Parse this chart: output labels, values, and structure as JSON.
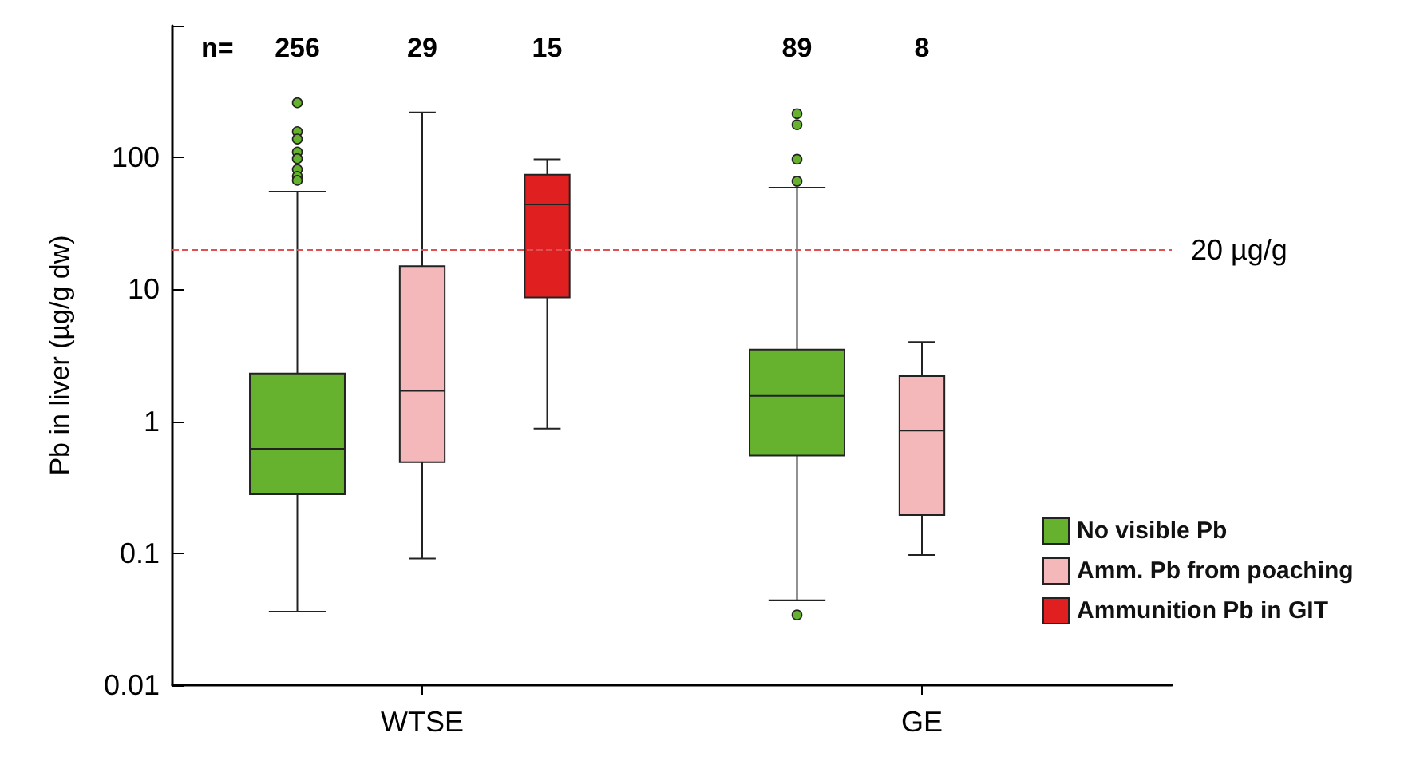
{
  "chart_data": {
    "type": "box",
    "ylabel": "Pb in liver (µg/g dw)",
    "categories": [
      "WTSE",
      "GE"
    ],
    "series": [
      {
        "name": "No visible Pb",
        "color": "#66b22e",
        "boxes": [
          {
            "low": 0.036,
            "q1": 0.28,
            "median": 0.62,
            "q3": 2.3,
            "high": 55,
            "outliers": [
              260,
              157,
              138,
              110,
              98,
              81,
              72,
              67
            ]
          },
          {
            "low": 0.044,
            "q1": 0.55,
            "median": 1.56,
            "q3": 3.5,
            "high": 59,
            "outliers": [
              215,
              177,
              97,
              66,
              0.034
            ]
          }
        ]
      },
      {
        "name": "Amm. Pb from poaching",
        "color": "#f5b8ba",
        "boxes": [
          {
            "low": 0.091,
            "q1": 0.49,
            "median": 1.7,
            "q3": 15,
            "high": 220
          },
          {
            "low": 0.097,
            "q1": 0.195,
            "median": 0.85,
            "q3": 2.2,
            "high": 4
          }
        ]
      },
      {
        "name": "Ammunition Pb in GIT",
        "color": "#e02020",
        "boxes": [
          {
            "low": 0.88,
            "q1": 8.7,
            "median": 44,
            "q3": 74,
            "high": 97
          },
          null
        ]
      }
    ],
    "log": true,
    "ylim": [
      0.01,
      1000
    ],
    "yticks": [
      0.01,
      0.1,
      1,
      10,
      100,
      {
        "value": 1000,
        "label": null
      }
    ],
    "ref_lines": [
      {
        "axis": "y",
        "value": 20,
        "label": "20 µg/g",
        "color": "#e05050",
        "line_style": "dashed"
      }
    ],
    "annotations": [
      "n=",
      "256",
      "29",
      "15",
      "89",
      "8"
    ],
    "legend": "bottom right",
    "grid": false
  }
}
